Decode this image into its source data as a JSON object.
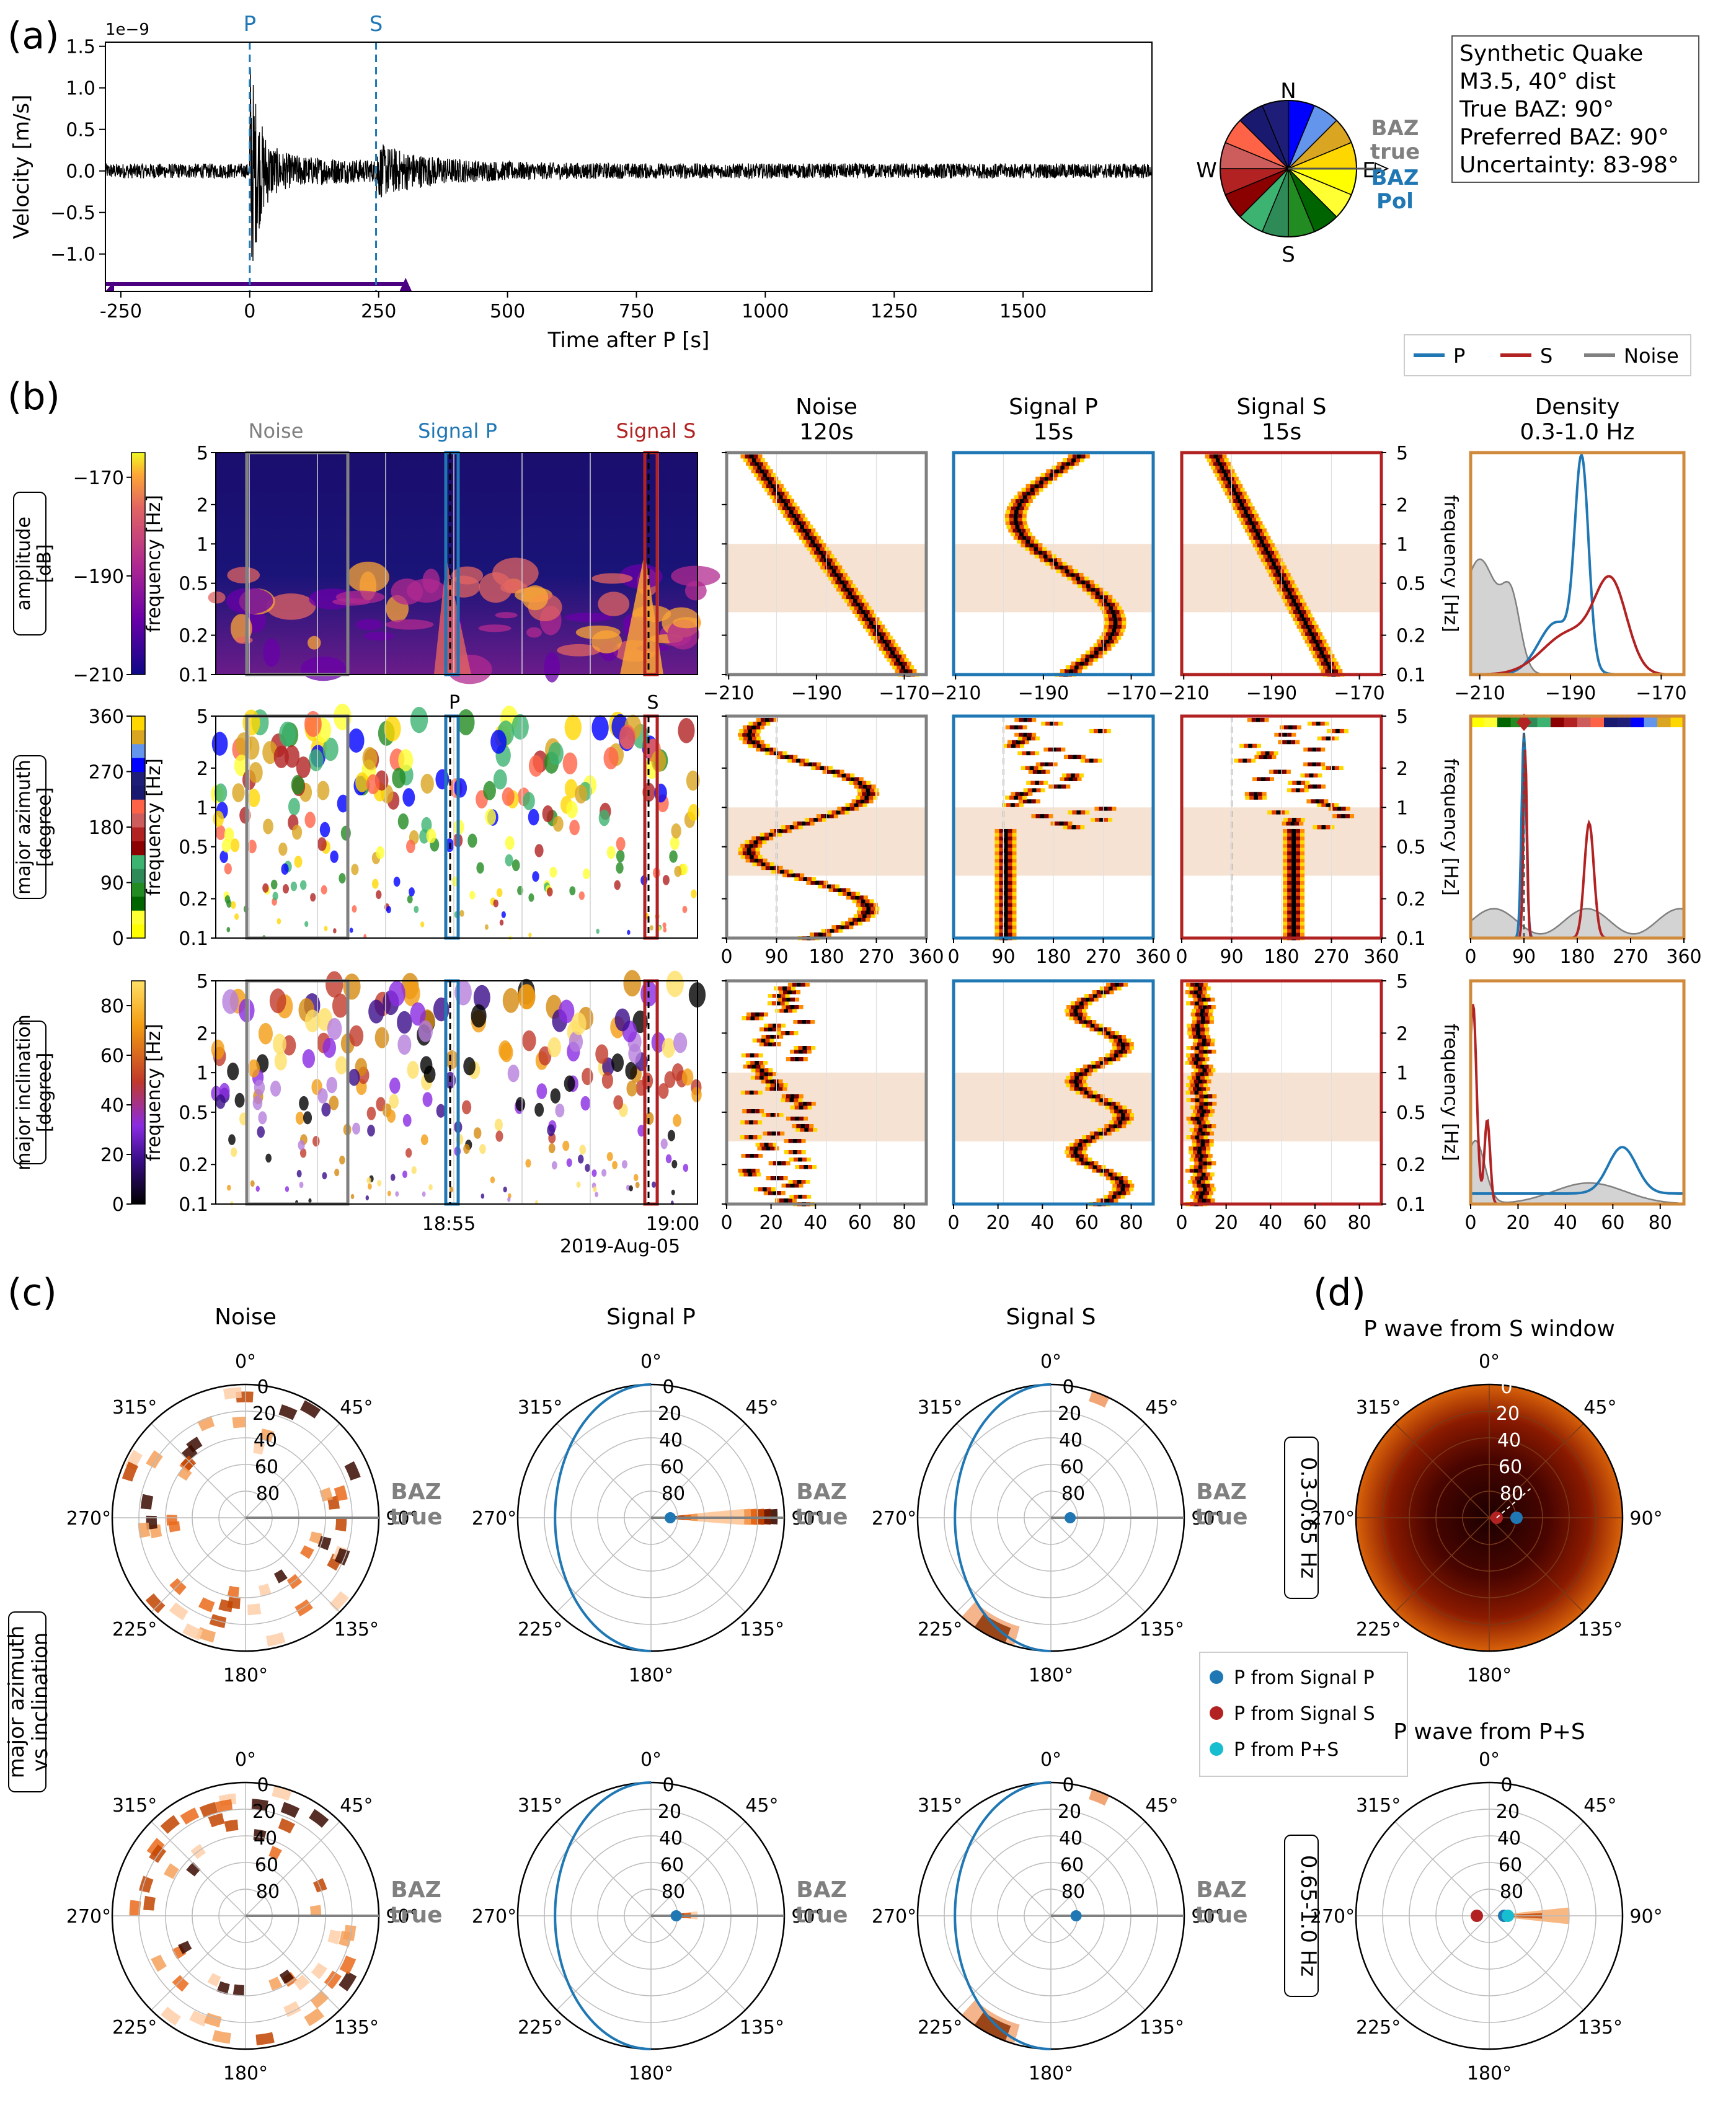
{
  "panel_labels": {
    "a": "(a)",
    "b": "(b)",
    "c": "(c)",
    "d": "(d)"
  },
  "colors": {
    "P": "#1f77b4",
    "S": "#b22222",
    "noise": "#808080",
    "density_frame": "#d08a3c",
    "band": "#f5e2d2",
    "trace": "#000000"
  },
  "chart_data": [
    {
      "id": "a-trace",
      "type": "line",
      "title": "",
      "xlabel": "Time after P [s]",
      "ylabel": "Velocity [m/s]",
      "y_exponent": "1e−9",
      "xlim": [
        -280,
        1750
      ],
      "ylim": [
        -1.45,
        1.55
      ],
      "xticks": [
        "-250",
        "0",
        "250",
        "500",
        "750",
        "1000",
        "1250",
        "1500"
      ],
      "yticks": [
        "1.5",
        "1.0",
        "0.5",
        "0.0",
        "−0.5",
        "−1.0"
      ],
      "marker_labels": [
        "P",
        "S"
      ],
      "P_time": 0,
      "S_time": 245,
      "noise_window": [
        -280,
        300
      ]
    },
    {
      "id": "a-rose",
      "type": "pie",
      "compass": [
        "N",
        "E",
        "S",
        "W"
      ],
      "arrow_labels": {
        "true": "BAZ\ntrue",
        "pol": "BAZ\nPol"
      },
      "baz_true": 90,
      "baz_pol": 90
    },
    {
      "id": "b-spectrograms",
      "type": "heatmap",
      "window_labels": [
        "Noise",
        "Signal P",
        "Signal S"
      ],
      "phase_marks": [
        "P",
        "S"
      ],
      "freq_ticks": [
        "5",
        "2",
        "1",
        "0.5",
        "0.2",
        "0.1"
      ],
      "time_ticks": [
        "18:55",
        "19:00"
      ],
      "date": "2019-Aug-05",
      "rows": [
        {
          "name": "amplitude\n[dB]",
          "cbar_ticks": [
            "−170",
            "−190",
            "−210"
          ],
          "cbar_range": [
            -210,
            -165
          ]
        },
        {
          "name": "major azimuth\n[degree]",
          "cbar_ticks": [
            "360",
            "270",
            "180",
            "90",
            "0"
          ],
          "cbar_range": [
            0,
            360
          ]
        },
        {
          "name": "major inclination\n[degree]",
          "cbar_ticks": [
            "80",
            "60",
            "40",
            "20",
            "0"
          ],
          "cbar_range": [
            0,
            90
          ]
        }
      ],
      "ylabel": "frequency [Hz]"
    },
    {
      "id": "b-histograms",
      "type": "heatmap",
      "columns": [
        {
          "title": "Noise\n120s",
          "key": "noise"
        },
        {
          "title": "Signal P\n15s",
          "key": "P"
        },
        {
          "title": "Signal S\n15s",
          "key": "S"
        }
      ],
      "band_hz": [
        0.3,
        1.0
      ],
      "row_xticks": [
        [
          "−210",
          "−190",
          "−170"
        ],
        [
          "0",
          "90",
          "180",
          "270",
          "360"
        ],
        [
          "0",
          "20",
          "40",
          "60",
          "80"
        ]
      ],
      "freq_ticks": [
        "5",
        "2",
        "1",
        "0.5",
        "0.2",
        "0.1"
      ],
      "ylabel": "frequency [Hz]"
    },
    {
      "id": "b-density",
      "type": "line",
      "title": "Density\n0.3-1.0 Hz",
      "legend": [
        "P",
        "S",
        "Noise"
      ],
      "amplitude": {
        "xticks": [
          "−210",
          "−190",
          "−170"
        ],
        "xlim": [
          -212,
          -165
        ],
        "P_peak": -187.5,
        "S_peak": -181,
        "noise_peak": -210
      },
      "azimuth": {
        "xticks": [
          "0",
          "90",
          "180",
          "270",
          "360"
        ],
        "xlim": [
          0,
          360
        ],
        "P_peak": 90,
        "S_peak": 200,
        "pref_baz": 90
      },
      "inclination": {
        "xticks": [
          "0",
          "20",
          "40",
          "60",
          "80"
        ],
        "xlim": [
          0,
          90
        ],
        "P_peak": 64,
        "S_peak": 1,
        "noise_peak": 2
      }
    },
    {
      "id": "c-polar",
      "type": "heatmap",
      "row_label": "major azimuth\nvs inclination",
      "columns": [
        "Noise",
        "Signal P",
        "Signal S"
      ],
      "bands": [
        "0.3-0.65 Hz",
        "0.65-1.0 Hz"
      ],
      "theta_labels": [
        "0°",
        "45°",
        "90°",
        "135°",
        "180°",
        "225°",
        "270°",
        "315°"
      ],
      "r_labels": [
        "0",
        "20",
        "40",
        "60",
        "80"
      ],
      "baz_label": "BAZ\ntrue",
      "baz_true": 90,
      "P_inclination_band1": 77,
      "P_inclination_band2": 73
    },
    {
      "id": "d-polar",
      "type": "heatmap",
      "titles": [
        "P wave from S window",
        "P wave from P+S"
      ],
      "legend": [
        "P from Signal P",
        "P from Signal S",
        "P from P+S"
      ],
      "theta_labels": [
        "0°",
        "45°",
        "90°",
        "135°",
        "180°",
        "225°",
        "270°",
        "315°"
      ],
      "r_labels": [
        "0",
        "20",
        "40",
        "60",
        "80"
      ]
    }
  ],
  "info_box": [
    "Synthetic Quake",
    "M3.5, 40° dist",
    "True BAZ: 90°",
    "Preferred BAZ: 90°",
    "Uncertainty: 83-98°"
  ]
}
